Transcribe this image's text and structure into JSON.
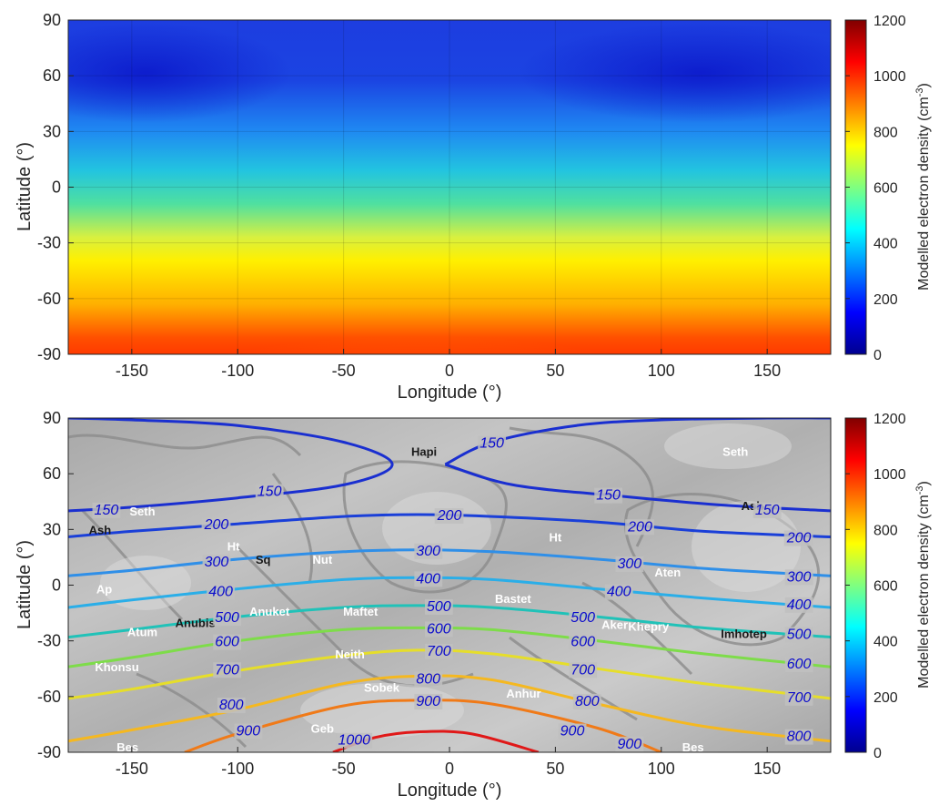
{
  "chart_data": [
    {
      "type": "heatmap",
      "xlabel": "Longitude (°)",
      "ylabel": "Latitude (°)",
      "xlim": [
        -180,
        180
      ],
      "ylim": [
        -90,
        90
      ],
      "xticks": [
        "-150",
        "-100",
        "-50",
        "0",
        "50",
        "100",
        "150"
      ],
      "yticks": [
        "90",
        "60",
        "30",
        "0",
        "-30",
        "-60",
        "-90"
      ],
      "colorbar": {
        "label": "Modelled electron density (cm",
        "label_exp": "-3",
        "label_close": ")",
        "range": [
          0,
          1200
        ],
        "ticks": [
          "1200",
          "1000",
          "800",
          "600",
          "400",
          "200",
          "0"
        ],
        "colormap": "jet"
      },
      "field_samples": [
        {
          "lat": 90,
          "lon": 0,
          "value": 125
        },
        {
          "lat": 60,
          "lon": -150,
          "value": 150
        },
        {
          "lat": 30,
          "lon": 0,
          "value": 200
        },
        {
          "lat": 15,
          "lon": 0,
          "value": 300
        },
        {
          "lat": 0,
          "lon": 0,
          "value": 400
        },
        {
          "lat": -15,
          "lon": 0,
          "value": 500
        },
        {
          "lat": -30,
          "lon": 0,
          "value": 650
        },
        {
          "lat": -55,
          "lon": 0,
          "value": 850
        },
        {
          "lat": -90,
          "lon": -15,
          "value": 1050
        }
      ]
    },
    {
      "type": "contour",
      "xlabel": "Longitude (°)",
      "ylabel": "Latitude (°)",
      "xlim": [
        -180,
        180
      ],
      "ylim": [
        -90,
        90
      ],
      "xticks": [
        "-150",
        "-100",
        "-50",
        "0",
        "50",
        "100",
        "150"
      ],
      "yticks": [
        "90",
        "60",
        "30",
        "0",
        "-30",
        "-60",
        "-90"
      ],
      "colorbar": {
        "label": "Modelled electron density (cm",
        "label_exp": "-3",
        "label_close": ")",
        "range": [
          0,
          1200
        ],
        "ticks": [
          "1200",
          "1000",
          "800",
          "600",
          "400",
          "200",
          "0"
        ],
        "colormap": "jet"
      },
      "background": "grayscale shape-model map",
      "contour_levels": [
        {
          "level": 150,
          "label": "150",
          "color": "#1a2fd0",
          "points": [
            [
              -180,
              40
            ],
            [
              -150,
              42
            ],
            [
              -100,
              47
            ],
            [
              -50,
              54
            ],
            [
              -27,
              65
            ],
            [
              -50,
              77
            ],
            [
              -100,
              86
            ],
            [
              -150,
              89
            ],
            [
              -180,
              90
            ]
          ],
          "labels_at": [
            [
              -162,
              41
            ],
            [
              -85,
              51
            ]
          ]
        },
        {
          "level": 150,
          "label": "150",
          "color": "#1a2fd0",
          "points": [
            [
              -2,
              65
            ],
            [
              20,
              77
            ],
            [
              60,
              86
            ],
            [
              100,
              89
            ],
            [
              150,
              90
            ],
            [
              180,
              90
            ]
          ],
          "labels_at": [
            [
              20,
              77
            ]
          ]
        },
        {
          "level": 150,
          "label": "150",
          "color": "#1a2fd0",
          "points": [
            [
              -2,
              65
            ],
            [
              30,
              54
            ],
            [
              80,
              48
            ],
            [
              130,
              43
            ],
            [
              180,
              40
            ]
          ],
          "labels_at": [
            [
              75,
              49
            ],
            [
              150,
              41
            ]
          ]
        },
        {
          "level": 200,
          "label": "200",
          "color": "#1a3fd8",
          "points": [
            [
              -180,
              26
            ],
            [
              -150,
              29
            ],
            [
              -100,
              33
            ],
            [
              -50,
              37
            ],
            [
              -15,
              38
            ],
            [
              20,
              37
            ],
            [
              70,
              34
            ],
            [
              120,
              29
            ],
            [
              180,
              26
            ]
          ],
          "labels_at": [
            [
              -110,
              33
            ],
            [
              0,
              38
            ],
            [
              90,
              32
            ],
            [
              165,
              26
            ]
          ]
        },
        {
          "level": 300,
          "label": "300",
          "color": "#2f8fe8",
          "points": [
            [
              -180,
              5
            ],
            [
              -150,
              8
            ],
            [
              -100,
              14
            ],
            [
              -50,
              18
            ],
            [
              -15,
              19
            ],
            [
              20,
              18
            ],
            [
              70,
              14
            ],
            [
              120,
              9
            ],
            [
              180,
              5
            ]
          ],
          "labels_at": [
            [
              -110,
              13
            ],
            [
              -10,
              19
            ],
            [
              85,
              12
            ],
            [
              165,
              5
            ]
          ]
        },
        {
          "level": 400,
          "label": "400",
          "color": "#2aaee8",
          "points": [
            [
              -180,
              -12
            ],
            [
              -150,
              -8
            ],
            [
              -100,
              -2
            ],
            [
              -50,
              3
            ],
            [
              -15,
              4
            ],
            [
              20,
              3
            ],
            [
              70,
              -2
            ],
            [
              120,
              -7
            ],
            [
              180,
              -12
            ]
          ],
          "labels_at": [
            [
              -108,
              -3
            ],
            [
              -10,
              4
            ],
            [
              80,
              -3
            ],
            [
              165,
              -10
            ]
          ]
        },
        {
          "level": 500,
          "label": "500",
          "color": "#20c2b8",
          "points": [
            [
              -180,
              -28
            ],
            [
              -150,
              -24
            ],
            [
              -100,
              -17
            ],
            [
              -50,
              -12
            ],
            [
              -15,
              -11
            ],
            [
              20,
              -12
            ],
            [
              70,
              -17
            ],
            [
              120,
              -23
            ],
            [
              180,
              -28
            ]
          ],
          "labels_at": [
            [
              -105,
              -17
            ],
            [
              -5,
              -11
            ],
            [
              63,
              -17
            ],
            [
              165,
              -26
            ]
          ]
        },
        {
          "level": 600,
          "label": "600",
          "color": "#7edc4a",
          "points": [
            [
              -180,
              -44
            ],
            [
              -150,
              -39
            ],
            [
              -100,
              -30
            ],
            [
              -50,
              -24
            ],
            [
              -15,
              -23
            ],
            [
              20,
              -24
            ],
            [
              70,
              -30
            ],
            [
              120,
              -37
            ],
            [
              180,
              -44
            ]
          ],
          "labels_at": [
            [
              -105,
              -30
            ],
            [
              -5,
              -23
            ],
            [
              63,
              -30
            ],
            [
              165,
              -42
            ]
          ]
        },
        {
          "level": 700,
          "label": "700",
          "color": "#e6de2a",
          "points": [
            [
              -180,
              -61
            ],
            [
              -150,
              -56
            ],
            [
              -100,
              -46
            ],
            [
              -50,
              -38
            ],
            [
              -15,
              -35
            ],
            [
              20,
              -37
            ],
            [
              70,
              -45
            ],
            [
              120,
              -53
            ],
            [
              180,
              -61
            ]
          ],
          "labels_at": [
            [
              -105,
              -45
            ],
            [
              -5,
              -35
            ],
            [
              63,
              -45
            ],
            [
              165,
              -60
            ]
          ]
        },
        {
          "level": 800,
          "label": "800",
          "color": "#f5b820",
          "points": [
            [
              -180,
              -84
            ],
            [
              -150,
              -78
            ],
            [
              -100,
              -67
            ],
            [
              -50,
              -53
            ],
            [
              -15,
              -49
            ],
            [
              20,
              -51
            ],
            [
              70,
              -64
            ],
            [
              120,
              -76
            ],
            [
              180,
              -84
            ]
          ],
          "labels_at": [
            [
              -103,
              -64
            ],
            [
              -10,
              -50
            ],
            [
              65,
              -62
            ],
            [
              165,
              -81
            ]
          ]
        },
        {
          "level": 900,
          "label": "900",
          "color": "#f07a18",
          "points": [
            [
              -125,
              -90
            ],
            [
              -100,
              -80
            ],
            [
              -50,
              -65
            ],
            [
              -15,
              -62
            ],
            [
              20,
              -64
            ],
            [
              70,
              -77
            ],
            [
              100,
              -90
            ]
          ],
          "labels_at": [
            [
              -95,
              -78
            ],
            [
              -10,
              -62
            ],
            [
              58,
              -78
            ],
            [
              85,
              -85
            ]
          ]
        },
        {
          "level": 1000,
          "label": "1000",
          "color": "#e01818",
          "points": [
            [
              -55,
              -90
            ],
            [
              -35,
              -82
            ],
            [
              -15,
              -79
            ],
            [
              10,
              -80
            ],
            [
              42,
              -90
            ]
          ],
          "labels_at": [
            [
              -45,
              -83
            ]
          ]
        }
      ],
      "region_labels": [
        {
          "name": "Hapi",
          "lon": -12,
          "lat": 72,
          "color": "#1a1a1a"
        },
        {
          "name": "Seth",
          "lon": 135,
          "lat": 72,
          "color": "#ffffff"
        },
        {
          "name": "Seth",
          "lon": -145,
          "lat": 40,
          "color": "#ffffff"
        },
        {
          "name": "Ash",
          "lon": -165,
          "lat": 30,
          "color": "#1a1a1a"
        },
        {
          "name": "Ash",
          "lon": 143,
          "lat": 43,
          "color": "#1a1a1a"
        },
        {
          "name": "Ht",
          "lon": -102,
          "lat": 21,
          "color": "#ffffff"
        },
        {
          "name": "Sq",
          "lon": -88,
          "lat": 14,
          "color": "#1a1a1a"
        },
        {
          "name": "Nut",
          "lon": -60,
          "lat": 14,
          "color": "#ffffff"
        },
        {
          "name": "Ht",
          "lon": 50,
          "lat": 26,
          "color": "#ffffff"
        },
        {
          "name": "Ap",
          "lon": -163,
          "lat": -2,
          "color": "#ffffff"
        },
        {
          "name": "Anuket",
          "lon": -85,
          "lat": -14,
          "color": "#ffffff"
        },
        {
          "name": "Maftet",
          "lon": -42,
          "lat": -14,
          "color": "#ffffff"
        },
        {
          "name": "Bastet",
          "lon": 30,
          "lat": -7,
          "color": "#ffffff"
        },
        {
          "name": "Aten",
          "lon": 103,
          "lat": 7,
          "color": "#ffffff"
        },
        {
          "name": "Anubis",
          "lon": -120,
          "lat": -20,
          "color": "#1a1a1a"
        },
        {
          "name": "Atum",
          "lon": -145,
          "lat": -25,
          "color": "#ffffff"
        },
        {
          "name": "Aker",
          "lon": 78,
          "lat": -21,
          "color": "#ffffff"
        },
        {
          "name": "Khepry",
          "lon": 94,
          "lat": -22,
          "color": "#ffffff"
        },
        {
          "name": "Imhotep",
          "lon": 139,
          "lat": -26,
          "color": "#1a1a1a"
        },
        {
          "name": "Khonsu",
          "lon": -157,
          "lat": -44,
          "color": "#ffffff"
        },
        {
          "name": "Neith",
          "lon": -47,
          "lat": -37,
          "color": "#ffffff"
        },
        {
          "name": "Sobek",
          "lon": -32,
          "lat": -55,
          "color": "#ffffff"
        },
        {
          "name": "Anhur",
          "lon": 35,
          "lat": -58,
          "color": "#ffffff"
        },
        {
          "name": "Geb",
          "lon": -60,
          "lat": -77,
          "color": "#ffffff"
        },
        {
          "name": "Bes",
          "lon": -152,
          "lat": -87,
          "color": "#ffffff"
        },
        {
          "name": "Bes",
          "lon": 115,
          "lat": -87,
          "color": "#ffffff"
        }
      ]
    }
  ]
}
